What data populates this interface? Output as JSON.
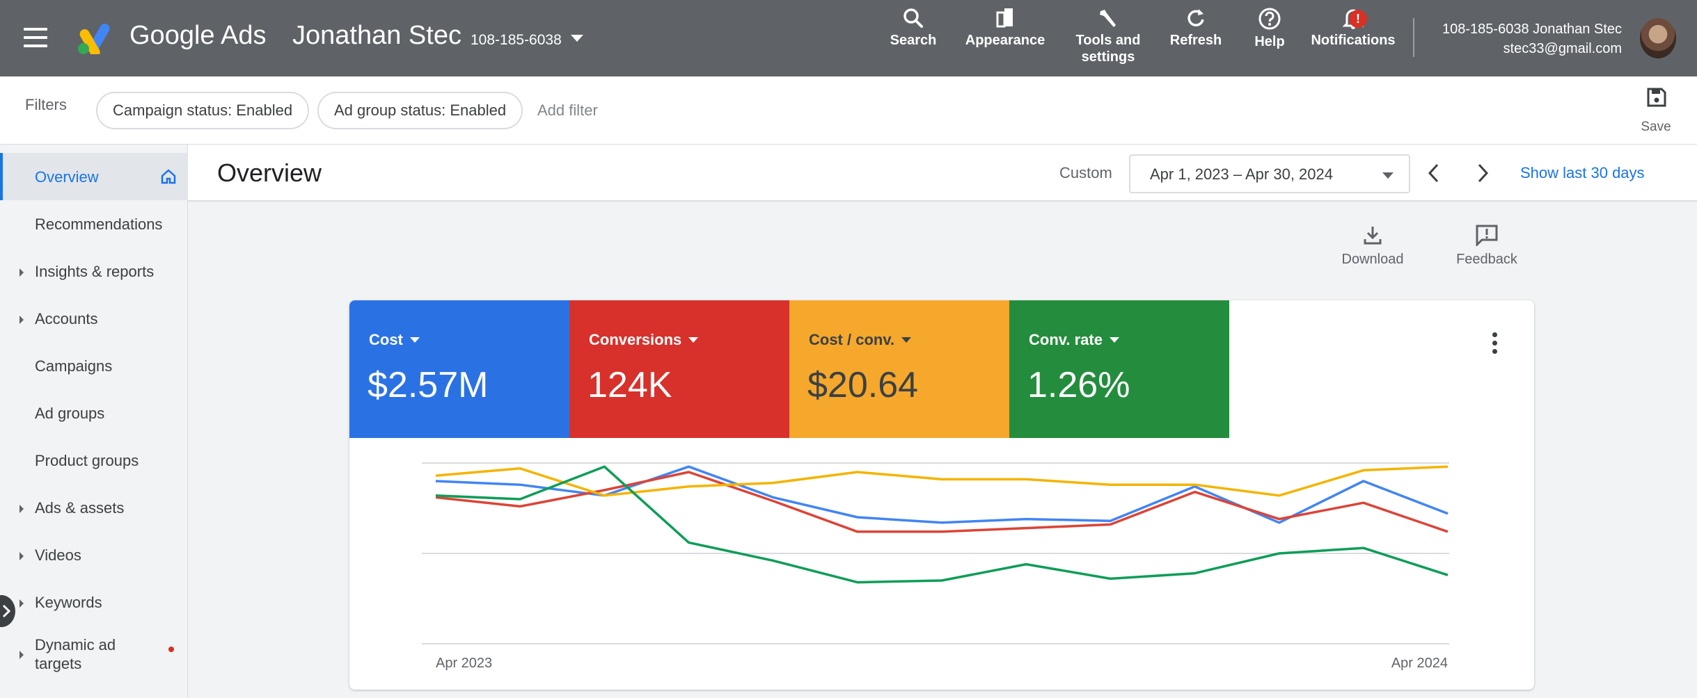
{
  "header": {
    "brand": "Google Ads",
    "account_name": "Jonathan Stec",
    "account_id": "108-185-6038",
    "tools": {
      "search": "Search",
      "appearance": "Appearance",
      "tools_line1": "Tools and",
      "tools_line2": "settings",
      "refresh": "Refresh",
      "help": "Help",
      "notifications": "Notifications",
      "notification_badge": "!"
    },
    "user": {
      "line1": "108-185-6038 Jonathan Stec",
      "email": "stec33@gmail.com"
    }
  },
  "filters": {
    "label": "Filters",
    "chips": [
      "Campaign status: Enabled",
      "Ad group status: Enabled"
    ],
    "add_filter": "Add filter",
    "save": "Save"
  },
  "sidebar": {
    "items": [
      {
        "label": "Overview",
        "active": true
      },
      {
        "label": "Recommendations"
      },
      {
        "label": "Insights & reports",
        "expandable": true
      },
      {
        "label": "Accounts",
        "expandable": true
      },
      {
        "label": "Campaigns"
      },
      {
        "label": "Ad groups"
      },
      {
        "label": "Product groups"
      },
      {
        "label": "Ads & assets",
        "expandable": true
      },
      {
        "label": "Videos",
        "expandable": true
      },
      {
        "label": "Keywords",
        "expandable": true
      },
      {
        "label_line1": "Dynamic ad",
        "label_line2": "targets",
        "expandable": true
      }
    ]
  },
  "page": {
    "title": "Overview",
    "range_type": "Custom",
    "date_range": "Apr 1, 2023 – Apr 30, 2024",
    "show_last": "Show last 30 days",
    "download": "Download",
    "feedback": "Feedback"
  },
  "metrics": [
    {
      "label": "Cost",
      "value": "$2.57M",
      "color": "#2a72e4"
    },
    {
      "label": "Conversions",
      "value": "124K",
      "color": "#d8312b"
    },
    {
      "label": "Cost / conv.",
      "value": "$20.64",
      "color": "#f5a82c"
    },
    {
      "label": "Conv. rate",
      "value": "1.26%",
      "color": "#248d3d"
    }
  ],
  "chart_data": {
    "type": "line",
    "x_start_label": "Apr 2023",
    "x_end_label": "Apr 2024",
    "grid": true,
    "series": [
      {
        "color": "#4285f4",
        "values": [
          0.9,
          0.88,
          0.82,
          0.98,
          0.81,
          0.7,
          0.67,
          0.69,
          0.68,
          0.87,
          0.67,
          0.9,
          0.72
        ]
      },
      {
        "color": "#db4437",
        "values": [
          0.81,
          0.76,
          0.85,
          0.95,
          0.79,
          0.62,
          0.62,
          0.64,
          0.66,
          0.84,
          0.69,
          0.78,
          0.62
        ]
      },
      {
        "color": "#f4b400",
        "values": [
          0.93,
          0.97,
          0.82,
          0.87,
          0.89,
          0.95,
          0.91,
          0.91,
          0.88,
          0.88,
          0.82,
          0.96,
          0.98
        ]
      },
      {
        "color": "#0f9d58",
        "values": [
          0.82,
          0.8,
          0.98,
          0.56,
          0.46,
          0.34,
          0.35,
          0.44,
          0.36,
          0.39,
          0.5,
          0.53,
          0.38
        ]
      }
    ],
    "ylim": [
      0,
      1
    ]
  }
}
